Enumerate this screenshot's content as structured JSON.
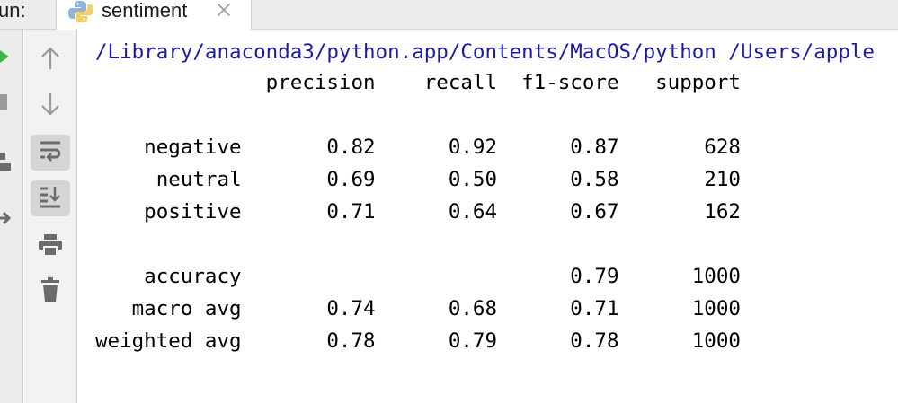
{
  "tabbar": {
    "run_label": "un:",
    "tab_label": "sentiment",
    "tab_icon": "python-icon"
  },
  "console": {
    "command": "/Library/anaconda3/python.app/Contents/MacOS/python /Users/apple",
    "lines": [
      "              precision    recall  f1-score   support",
      "",
      "    negative       0.82      0.92      0.87       628",
      "     neutral       0.69      0.50      0.58       210",
      "    positive       0.71      0.64      0.67       162",
      "",
      "    accuracy                           0.79      1000",
      "   macro avg       0.74      0.68      0.71      1000",
      "weighted avg       0.78      0.79      0.78      1000"
    ]
  },
  "colors": {
    "command_text": "#1a1aa6",
    "run_green": "#3bb54a",
    "toolbar_icon": "#6b6b6b",
    "active_button": "#d5d5d5"
  }
}
